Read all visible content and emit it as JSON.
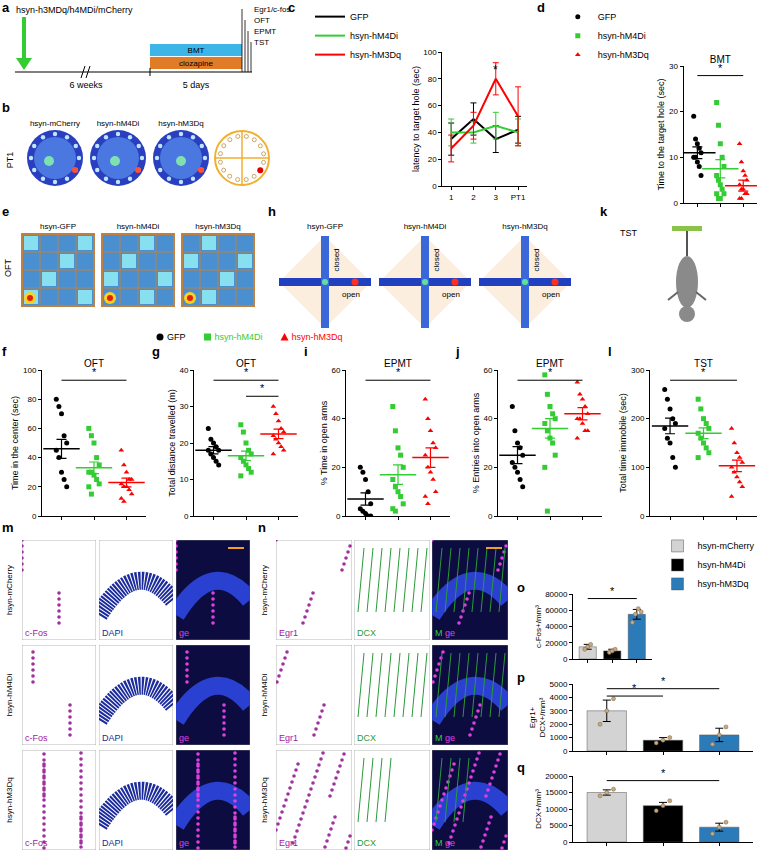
{
  "timeline": {
    "panel": "a",
    "construct": "hsyn-h3MDq/h4MDi/mCherry",
    "interval": "6 weeks",
    "duration": "5 days",
    "treatments": [
      "BMT",
      "clozapine"
    ],
    "tests": [
      "Egr1/c-fos",
      "OFT",
      "EPMT",
      "TST"
    ]
  },
  "images": [
    {
      "panel": "b",
      "row_label": "PT1",
      "titles": [
        "hsyn-mCherry",
        "hsyn-hM4Di",
        "hsyn-hM3Dq"
      ]
    },
    {
      "panel": "e",
      "row_label": "OFT",
      "titles": [
        "hsyn-GFP",
        "hsyn-hM4Di",
        "hsyn-hM3Dq"
      ]
    },
    {
      "panel": "h",
      "titles": [
        "hsyn-GFP",
        "hsyn-hM4Di",
        "hsyn-hM3Dq"
      ],
      "arm_labels": [
        "closed",
        "open"
      ]
    },
    {
      "panel": "k",
      "title": "TST"
    },
    {
      "panel": "m",
      "rows": [
        "hsyn-mCherry",
        "hsyn-hM4Di",
        "hsyn-hM3Dq"
      ],
      "columns": [
        "c-Fos",
        "DAPI"
      ],
      "merge_label": [
        "ge"
      ]
    },
    {
      "panel": "n",
      "rows": [
        "hsyn-mCherry",
        "hsyn-hM4Di",
        "hsyn-hM3Dq"
      ],
      "columns": [
        "Egr1",
        "DCX"
      ],
      "merge_label": [
        "M",
        "ge"
      ]
    }
  ],
  "chart_data": [
    {
      "panel": "c",
      "type": "line",
      "categories": [
        "1",
        "2",
        "3",
        "PT1"
      ],
      "y_label": "latency to target hole (sec)",
      "ylim": [
        0,
        100
      ],
      "yticks": [
        0,
        20,
        40,
        60,
        80,
        100
      ],
      "legend": "top left",
      "series": [
        {
          "name": "GFP",
          "color": "#000000",
          "values": [
            35,
            50,
            35,
            42
          ],
          "errors": [
            12,
            12,
            10,
            10
          ]
        },
        {
          "name": "hsyn-hM4Di",
          "color": "#33cc33",
          "values": [
            40,
            40,
            45,
            40
          ],
          "errors": [
            10,
            8,
            10,
            10
          ]
        },
        {
          "name": "hsyn-hM3Dq",
          "color": "#ff0000",
          "values": [
            28,
            45,
            80,
            52
          ],
          "errors": [
            10,
            10,
            12,
            22
          ]
        }
      ],
      "annotations": [
        {
          "category": "3",
          "text": "*"
        }
      ]
    },
    {
      "panel": "d",
      "type": "scatter",
      "title": "BMT",
      "y_label": "Time to the target hole (sec)",
      "ylim": [
        0,
        30
      ],
      "yticks": [
        0,
        10,
        20,
        30
      ],
      "legend": "top left",
      "tick_labels": "y",
      "series": [
        {
          "name": "GFP",
          "color": "#000000",
          "marker": "circle",
          "values": [
            19,
            14,
            13,
            12,
            11,
            10,
            10,
            9,
            8,
            6
          ],
          "mean": 11,
          "sem": 1.3
        },
        {
          "name": "hsyn-hM4Di",
          "color": "#33cc33",
          "marker": "square",
          "values": [
            22,
            17,
            13,
            10,
            8,
            6,
            5,
            4,
            3,
            2,
            2,
            1,
            1
          ],
          "mean": 7.5,
          "sem": 2
        },
        {
          "name": "hsyn-hM3Dq",
          "color": "#ff0000",
          "marker": "triangle",
          "values": [
            13,
            9,
            7,
            6,
            5,
            4,
            3,
            3,
            2,
            2,
            1,
            1
          ],
          "mean": 3.8,
          "sem": 1.2
        }
      ],
      "significance": [
        {
          "from": 0,
          "to": 2,
          "label": "*"
        }
      ]
    },
    {
      "panel": "f",
      "type": "scatter",
      "title": "OFT",
      "y_label": "Time in the center (sec)",
      "ylim": [
        0,
        100
      ],
      "yticks": [
        0,
        20,
        40,
        60,
        80,
        100
      ],
      "legend": "top",
      "tick_labels": "y",
      "series": [
        {
          "name": "GFP",
          "color": "#000000",
          "marker": "circle",
          "values": [
            80,
            75,
            70,
            55,
            50,
            45,
            40,
            30,
            25,
            20
          ],
          "mean": 46,
          "sem": 6.5
        },
        {
          "name": "hsyn-hM4Di",
          "color": "#33cc33",
          "marker": "square",
          "values": [
            60,
            55,
            50,
            40,
            35,
            30,
            30,
            28,
            25,
            22,
            20,
            15
          ],
          "mean": 33,
          "sem": 4
        },
        {
          "name": "hsyn-hM3Dq",
          "color": "#ff0000",
          "marker": "triangle",
          "values": [
            45,
            35,
            30,
            25,
            25,
            22,
            20,
            20,
            18,
            15,
            12,
            10
          ],
          "mean": 23,
          "sem": 3
        }
      ],
      "significance": [
        {
          "from": 0,
          "to": 2,
          "label": "*"
        }
      ]
    },
    {
      "panel": "g",
      "type": "scatter",
      "title": "OFT",
      "y_label": "Total distance travelled (m)",
      "ylim": [
        0,
        40
      ],
      "yticks": [
        0,
        10,
        20,
        30,
        40
      ],
      "tick_labels": "y",
      "series": [
        {
          "name": "GFP",
          "color": "#000000",
          "marker": "circle",
          "values": [
            24,
            21,
            20,
            19,
            18,
            18,
            17,
            16,
            15,
            14
          ],
          "mean": 18,
          "sem": 1
        },
        {
          "name": "hsyn-hM4Di",
          "color": "#33cc33",
          "marker": "square",
          "values": [
            25,
            23,
            20,
            18,
            17,
            16,
            15,
            14,
            13,
            12,
            11
          ],
          "mean": 16.5,
          "sem": 1.3
        },
        {
          "name": "hsyn-hM3Dq",
          "color": "#ff0000",
          "marker": "triangle",
          "values": [
            30,
            28,
            26,
            24,
            23,
            22,
            21,
            20,
            19,
            18,
            17
          ],
          "mean": 22.5,
          "sem": 1.3
        }
      ],
      "significance": [
        {
          "from": 0,
          "to": 2,
          "label": "*"
        },
        {
          "from": 1,
          "to": 2,
          "label": "*"
        }
      ]
    },
    {
      "panel": "i",
      "type": "scatter",
      "title": "EPMT",
      "y_label": "% Time in open arms",
      "ylim": [
        0,
        60
      ],
      "yticks": [
        0,
        20,
        40,
        60
      ],
      "tick_labels": "y",
      "series": [
        {
          "name": "GFP",
          "color": "#000000",
          "marker": "circle",
          "values": [
            20,
            18,
            15,
            10,
            5,
            3,
            2,
            1,
            0,
            0
          ],
          "mean": 7,
          "sem": 2.5
        },
        {
          "name": "hsyn-hM4Di",
          "color": "#33cc33",
          "marker": "square",
          "values": [
            45,
            35,
            28,
            25,
            20,
            15,
            12,
            10,
            8,
            5,
            3,
            2
          ],
          "mean": 17,
          "sem": 4
        },
        {
          "name": "hsyn-hM3Dq",
          "color": "#ff0000",
          "marker": "triangle",
          "values": [
            48,
            40,
            35,
            30,
            28,
            25,
            20,
            18,
            15,
            10,
            8,
            5
          ],
          "mean": 24,
          "sem": 4
        }
      ],
      "significance": [
        {
          "from": 0,
          "to": 2,
          "label": "*"
        }
      ]
    },
    {
      "panel": "j",
      "type": "scatter",
      "title": "EPMT",
      "y_label": "% Entries into open arms",
      "ylim": [
        0,
        60
      ],
      "yticks": [
        0,
        20,
        40,
        60
      ],
      "tick_labels": "y",
      "series": [
        {
          "name": "GFP",
          "color": "#000000",
          "marker": "circle",
          "values": [
            45,
            35,
            30,
            28,
            25,
            22,
            20,
            18,
            15,
            12
          ],
          "mean": 25,
          "sem": 3.5
        },
        {
          "name": "hsyn-hM4Di",
          "color": "#33cc33",
          "marker": "square",
          "values": [
            58,
            50,
            45,
            42,
            40,
            38,
            35,
            32,
            30,
            25,
            20,
            2
          ],
          "mean": 36,
          "sem": 4
        },
        {
          "name": "hsyn-hM3Dq",
          "color": "#ff0000",
          "marker": "triangle",
          "values": [
            55,
            50,
            48,
            45,
            42,
            40,
            40,
            38,
            35,
            35,
            32
          ],
          "mean": 42,
          "sem": 2.5
        }
      ],
      "significance": [
        {
          "from": 0,
          "to": 2,
          "label": "*"
        }
      ]
    },
    {
      "panel": "l",
      "type": "scatter",
      "title": "TST",
      "y_label": "Total time immobile (sec)",
      "ylim": [
        0,
        300
      ],
      "yticks": [
        0,
        100,
        200,
        300
      ],
      "tick_labels": "y",
      "series": [
        {
          "name": "GFP",
          "color": "#000000",
          "marker": "circle",
          "values": [
            260,
            240,
            220,
            200,
            190,
            180,
            160,
            150,
            120,
            100
          ],
          "mean": 185,
          "sem": 16
        },
        {
          "name": "hsyn-hM4Di",
          "color": "#33cc33",
          "marker": "square",
          "values": [
            240,
            220,
            200,
            190,
            180,
            170,
            160,
            150,
            140,
            130,
            120
          ],
          "mean": 170,
          "sem": 11
        },
        {
          "name": "hsyn-hM3Dq",
          "color": "#ff0000",
          "marker": "triangle",
          "values": [
            180,
            150,
            130,
            120,
            110,
            100,
            90,
            80,
            70,
            60,
            40
          ],
          "mean": 103,
          "sem": 12
        }
      ],
      "significance": [
        {
          "from": 0,
          "to": 2,
          "label": "*"
        }
      ]
    },
    {
      "panel": "o",
      "type": "bar",
      "categories": [
        "hsyn-mCherry",
        "hsyn-hM4Di",
        "hsyn-hM3Dq"
      ],
      "colors": [
        "#d3d3d3",
        "#000000",
        "#2b7bb9"
      ],
      "values": [
        15000,
        10000,
        55000
      ],
      "errors": [
        3000,
        2000,
        6000
      ],
      "points": [
        [
          12000,
          15000,
          18000
        ],
        [
          8000,
          10000,
          12000
        ],
        [
          45000,
          55000,
          62000,
          58000
        ]
      ],
      "y_label": "c-Fos+/mm³",
      "ylim": [
        0,
        80000
      ],
      "yticks": [
        0,
        20000,
        40000,
        60000,
        80000
      ],
      "legend": "top right",
      "tick_labels": "y",
      "significance": [
        {
          "from": 0,
          "to": 2,
          "label": "*"
        }
      ]
    },
    {
      "panel": "p",
      "type": "bar",
      "categories": [
        "hsyn-mCherry",
        "hsyn-hM4Di",
        "hsyn-hM3Dq"
      ],
      "colors": [
        "#d3d3d3",
        "#000000",
        "#2b7bb9"
      ],
      "values": [
        3000,
        800,
        1200
      ],
      "errors": [
        800,
        200,
        500
      ],
      "points": [
        [
          2000,
          3000,
          3900
        ],
        [
          600,
          800,
          1000
        ],
        [
          500,
          1200,
          1800
        ]
      ],
      "y_label": "Egr1+\nDCX+/mm³",
      "ylim": [
        0,
        5000
      ],
      "yticks": [
        0,
        1000,
        2000,
        3000,
        4000,
        5000
      ],
      "tick_labels": "y",
      "significance": [
        {
          "from": 0,
          "to": 2,
          "label": "*"
        },
        {
          "from": 0,
          "to": 1,
          "label": "*"
        }
      ]
    },
    {
      "panel": "q",
      "type": "bar",
      "categories": [
        "hsyn-mCherry",
        "hsyn-hM4Di",
        "hsyn-hM3Dq"
      ],
      "colors": [
        "#d3d3d3",
        "#000000",
        "#2b7bb9"
      ],
      "values": [
        15000,
        11000,
        4500
      ],
      "errors": [
        800,
        1000,
        1200
      ],
      "points": [
        [
          14000,
          15000,
          16000
        ],
        [
          9500,
          11000,
          12500
        ],
        [
          2500,
          4500,
          6000
        ]
      ],
      "y_label": "DCX+/mm³",
      "ylim": [
        0,
        20000
      ],
      "yticks": [
        0,
        5000,
        10000,
        15000,
        20000
      ],
      "tick_labels": "y",
      "significance": [
        {
          "from": 0,
          "to": 2,
          "label": "*"
        }
      ]
    }
  ]
}
